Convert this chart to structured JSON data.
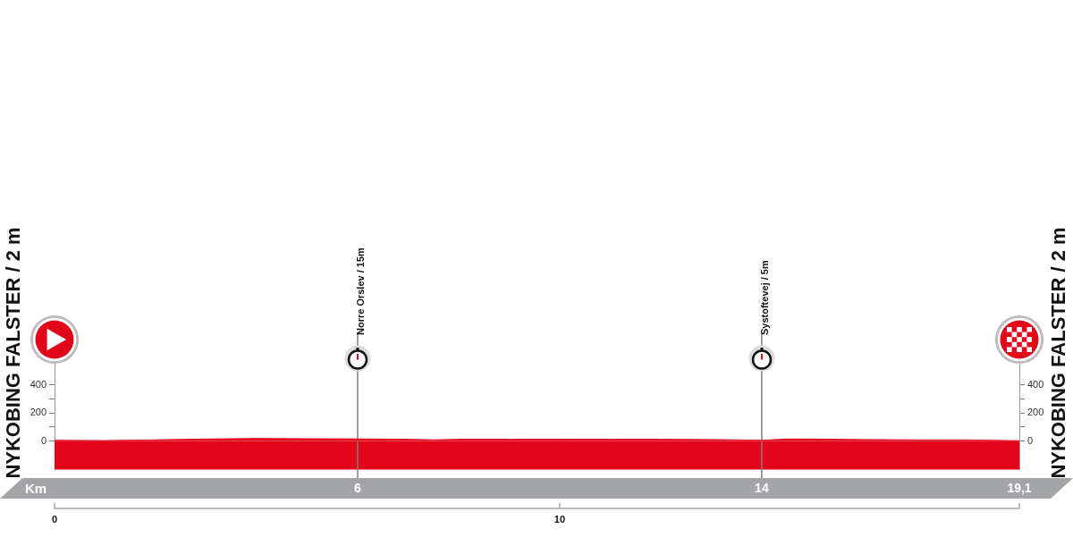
{
  "chart_data": {
    "type": "area",
    "ylabel": "NYKOBING FALSTER / 2 m",
    "y2label": "NYKOBING FALSTER / 2 m",
    "x2label": "Km",
    "x": [
      0,
      1,
      2,
      3,
      4,
      5,
      6,
      7,
      7.5,
      8,
      9,
      10,
      11,
      12,
      13,
      13.5,
      14,
      14.5,
      15,
      16,
      17,
      18,
      19.1
    ],
    "series": [
      {
        "color": "#e2061b",
        "values": [
          5,
          3,
          8,
          14,
          18,
          16,
          15,
          12,
          8,
          12,
          12,
          12,
          12,
          12,
          10,
          8,
          5,
          14,
          14,
          10,
          8,
          8,
          2
        ]
      }
    ],
    "xlim": [
      0,
      19.1
    ],
    "xticks": [
      0,
      10
    ],
    "x2lim": [
      0,
      19.1
    ],
    "x2ticks": [
      {
        "value": 6,
        "label": "6"
      },
      {
        "value": 14,
        "label": "14"
      },
      {
        "value": 19.1,
        "label": "19,1"
      }
    ],
    "ylim": [
      -200,
      550
    ],
    "yticks": [
      0,
      {
        "value": 100,
        "label": null
      },
      200,
      {
        "value": 300,
        "label": null
      },
      400
    ],
    "y2lim": [
      -200,
      550
    ],
    "y2ticks": [
      0,
      {
        "value": 100,
        "label": null
      },
      200,
      {
        "value": 300,
        "label": null
      },
      400
    ],
    "ref_lines": [
      {
        "axis": "x",
        "value": 6,
        "label": "Norre Orslev / 15m",
        "color": "#7f7f7f"
      },
      {
        "axis": "x",
        "value": 14,
        "label": "Systoftevej / 5m",
        "color": "#7f7f7f"
      }
    ],
    "bands": [
      {
        "axis": "y",
        "from": -200,
        "to": 0,
        "color": "#e2061b"
      }
    ],
    "grid": false,
    "legend": false,
    "marker": "none"
  }
}
